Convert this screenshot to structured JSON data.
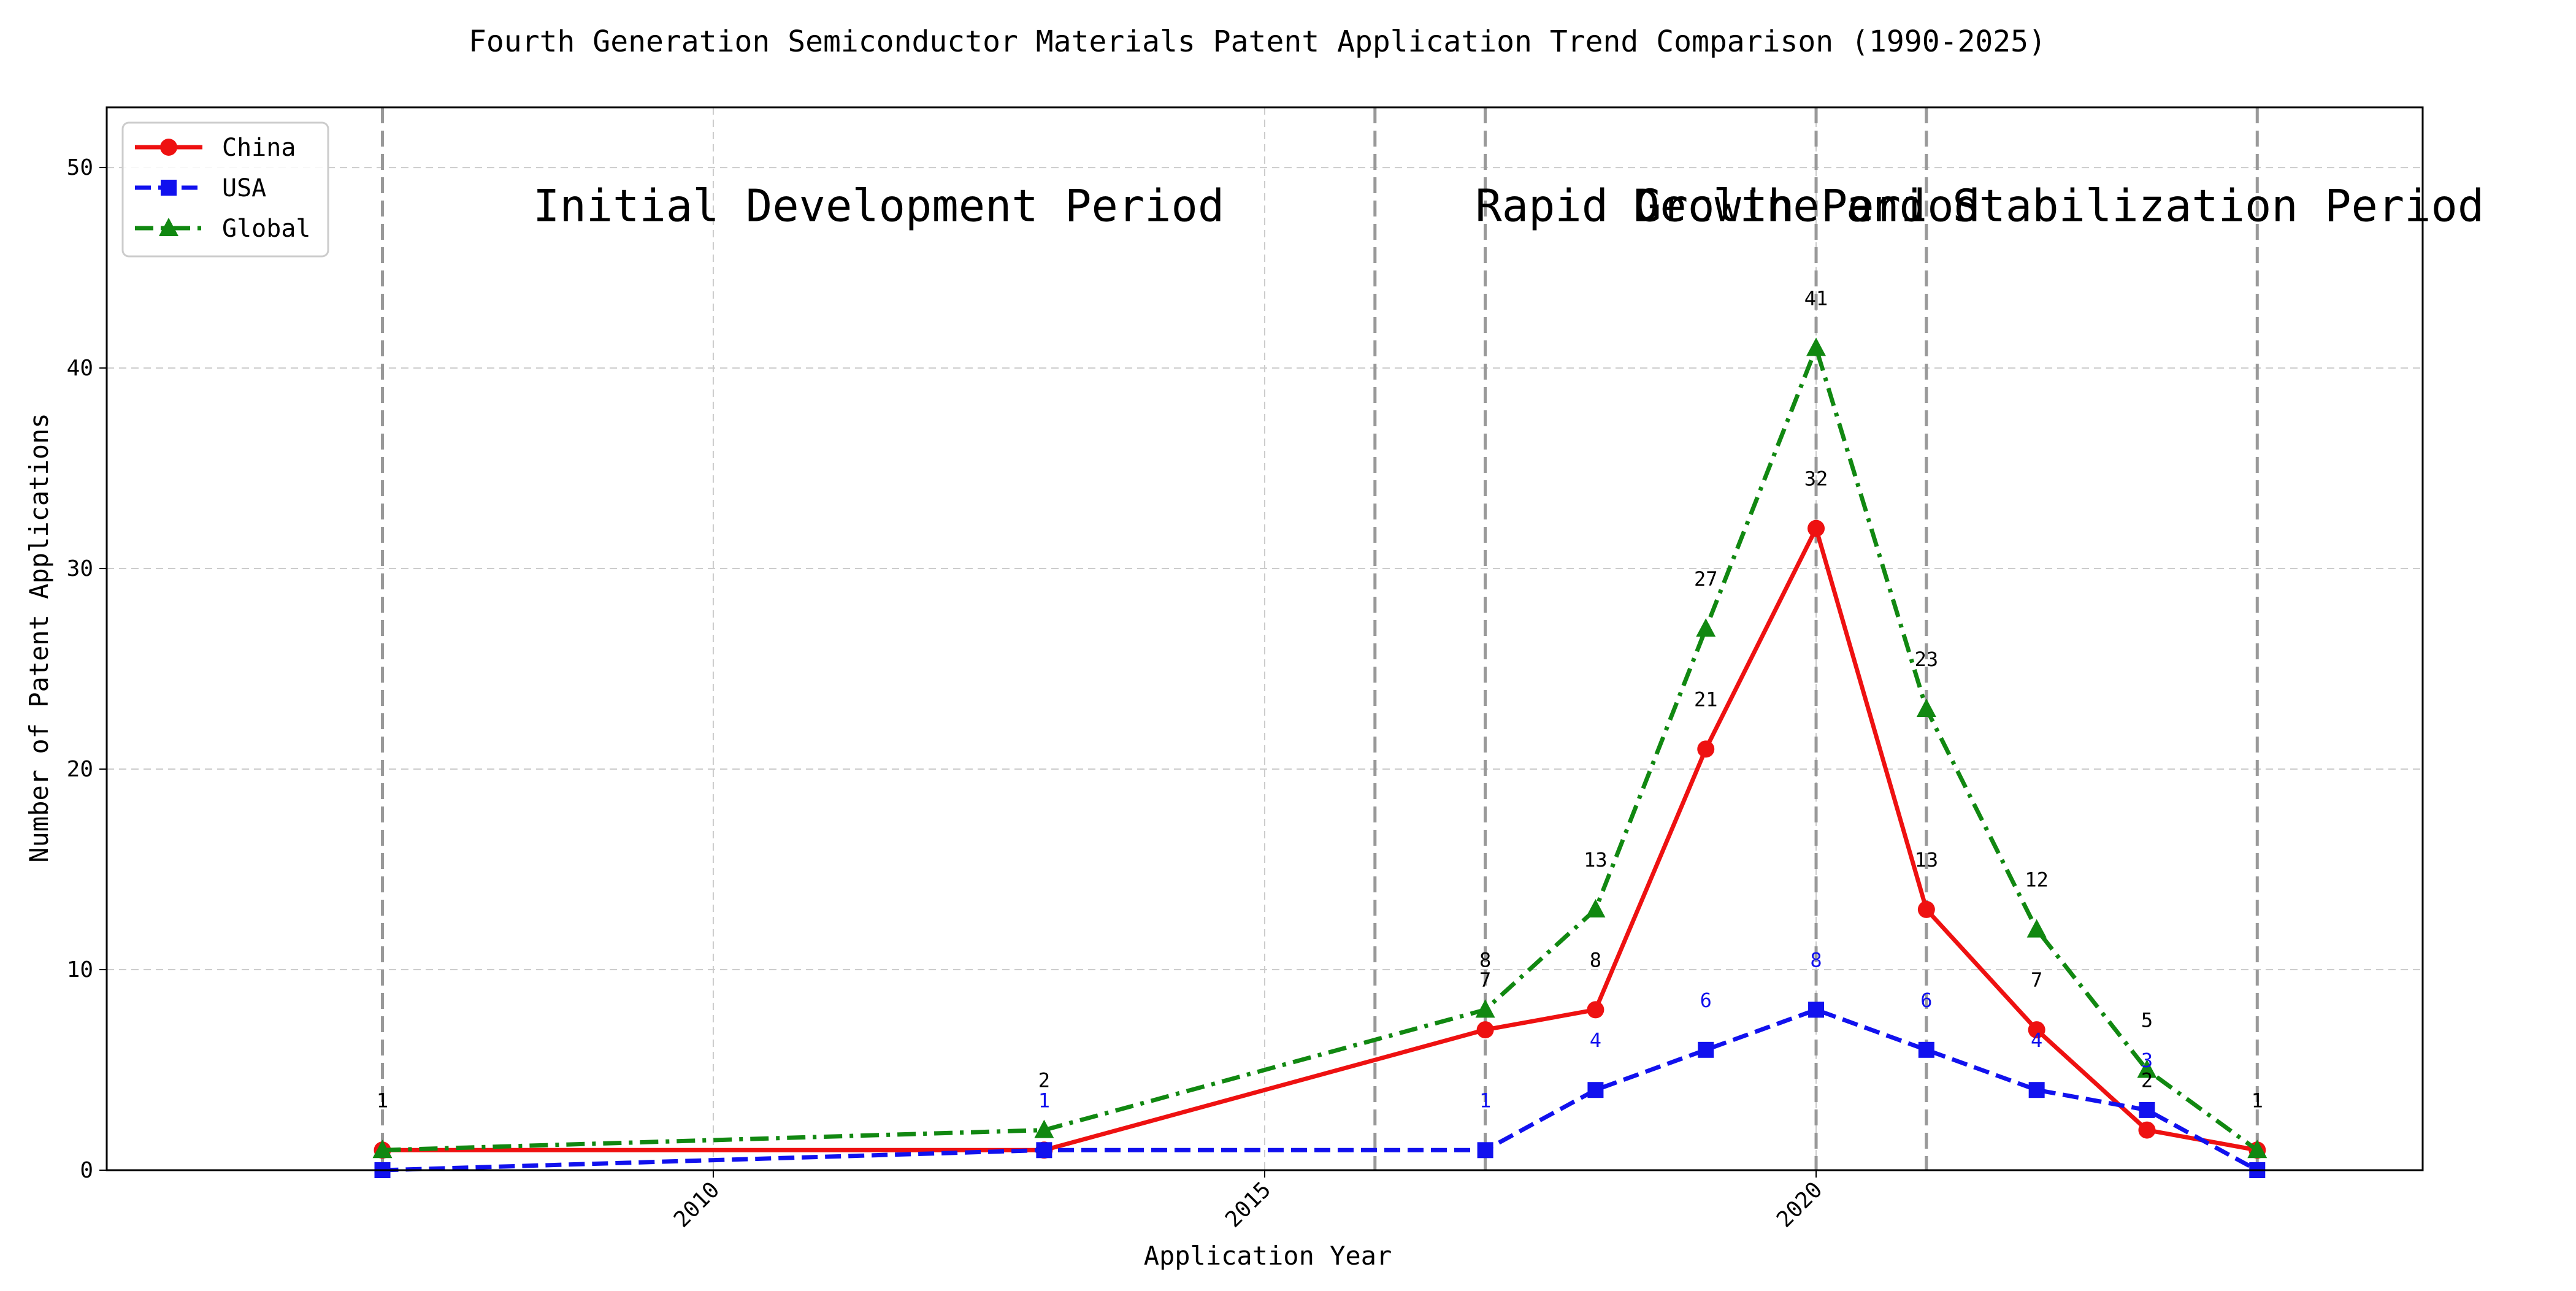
{
  "chart_data": {
    "type": "line",
    "title": "Fourth Generation Semiconductor Materials Patent Application Trend Comparison (1990-2025)",
    "xlabel": "Application Year",
    "ylabel": "Number of Patent Applications",
    "xlim": [
      2004.5,
      2025.5
    ],
    "ylim": [
      0,
      53
    ],
    "xticks": [
      2010,
      2015,
      2020
    ],
    "yticks": [
      0,
      10,
      20,
      30,
      40,
      50
    ],
    "grid": true,
    "legend": {
      "placement": "top-left"
    },
    "series": [
      {
        "name": "China",
        "color": "#ee1111",
        "line_style": "solid",
        "marker": "circle",
        "x": [
          2007,
          2013,
          2017,
          2018,
          2019,
          2020,
          2021,
          2022,
          2023,
          2024
        ],
        "values": [
          1,
          1,
          7,
          8,
          21,
          32,
          13,
          7,
          2,
          1
        ],
        "labels": [
          {
            "x": 2019,
            "text": "21"
          },
          {
            "x": 2020,
            "text": "32"
          },
          {
            "x": 2021,
            "text": "13"
          },
          {
            "x": 2022,
            "text": "7"
          },
          {
            "x": 2023,
            "text": "2"
          },
          {
            "x": 2017,
            "text": "7"
          },
          {
            "x": 2018,
            "text": "8"
          }
        ]
      },
      {
        "name": "USA",
        "color": "#1111ee",
        "line_style": "dashed",
        "marker": "square",
        "x": [
          2007,
          2013,
          2017,
          2018,
          2019,
          2020,
          2021,
          2022,
          2023,
          2024
        ],
        "values": [
          0,
          1,
          1,
          4,
          6,
          8,
          6,
          4,
          3,
          0
        ],
        "labels": [
          {
            "x": 2013,
            "text": "1"
          },
          {
            "x": 2017,
            "text": "1"
          },
          {
            "x": 2018,
            "text": "4"
          },
          {
            "x": 2019,
            "text": "6"
          },
          {
            "x": 2020,
            "text": "8"
          },
          {
            "x": 2021,
            "text": "6"
          },
          {
            "x": 2022,
            "text": "4"
          },
          {
            "x": 2023,
            "text": "3"
          }
        ]
      },
      {
        "name": "Global",
        "color": "#118811",
        "line_style": "dashdot",
        "marker": "triangle",
        "x": [
          2007,
          2013,
          2017,
          2018,
          2019,
          2020,
          2021,
          2022,
          2023,
          2024
        ],
        "values": [
          1,
          2,
          8,
          13,
          27,
          41,
          23,
          12,
          5,
          1
        ],
        "labels": [
          {
            "x": 2007,
            "text": "1"
          },
          {
            "x": 2013,
            "text": "2"
          },
          {
            "x": 2017,
            "text": "8"
          },
          {
            "x": 2018,
            "text": "13"
          },
          {
            "x": 2019,
            "text": "27"
          },
          {
            "x": 2020,
            "text": "41"
          },
          {
            "x": 2021,
            "text": "23"
          },
          {
            "x": 2022,
            "text": "12"
          },
          {
            "x": 2023,
            "text": "5"
          },
          {
            "x": 2024,
            "text": "1"
          }
        ]
      }
    ],
    "vertical_lines": [
      2007,
      2016,
      2017,
      2020,
      2021,
      2024
    ],
    "annotations": [
      {
        "text": "Initial Development Period",
        "x": 2011.5,
        "y": 48
      },
      {
        "text": "Rapid Growth Period",
        "x": 2019.2,
        "y": 48
      },
      {
        "text": "Decline and Stabilization Period",
        "x": 2022.2,
        "y": 48
      }
    ]
  }
}
